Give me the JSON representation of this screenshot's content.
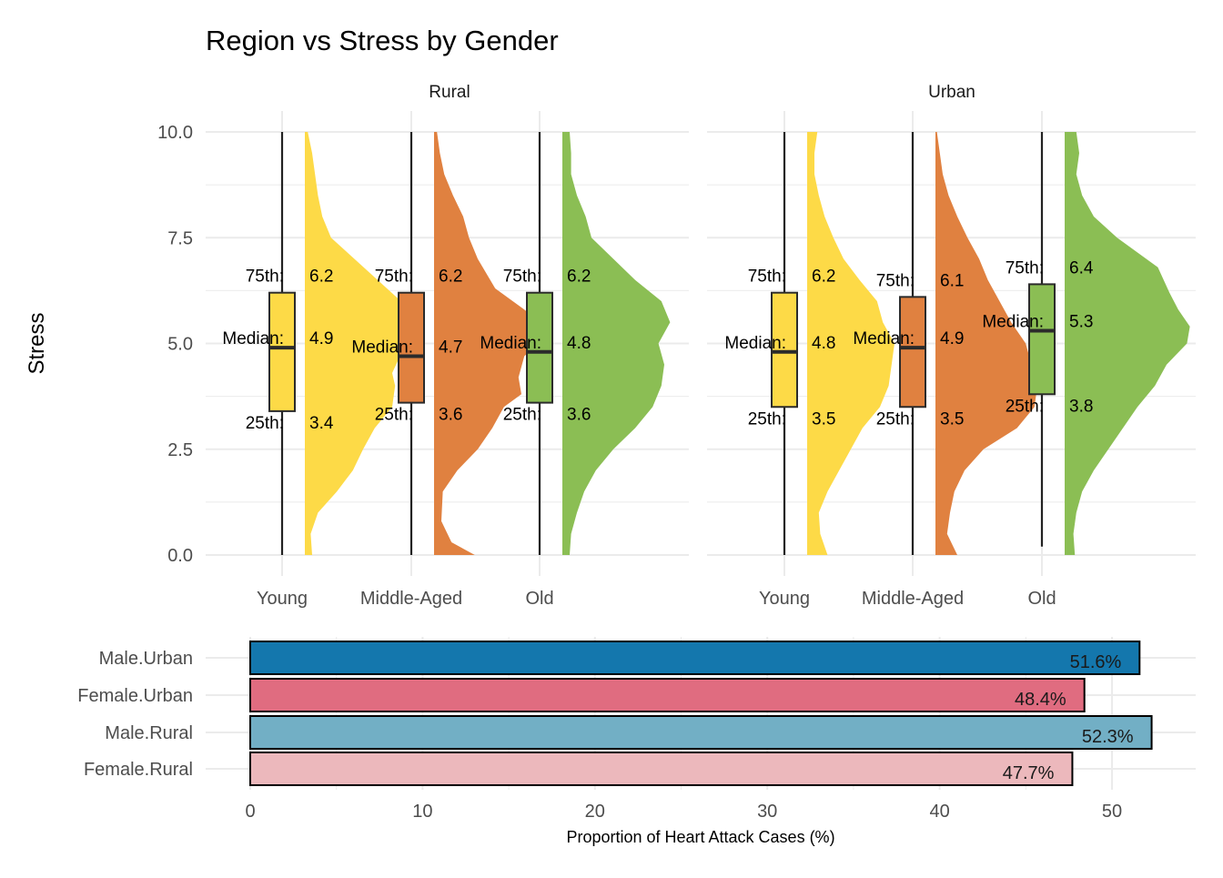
{
  "chart_data": [
    {
      "type": "boxplot-violin",
      "title": "Region vs Stress by Gender",
      "ylabel": "Stress",
      "xlabel": "",
      "ylim": [
        0,
        10
      ],
      "y_ticks": [
        "0.0",
        "2.5",
        "5.0",
        "7.5",
        "10.0"
      ],
      "categories": [
        "Young",
        "Middle-Aged",
        "Old"
      ],
      "colors": {
        "Young": "#FDDA47",
        "Middle-Aged": "#E08140",
        "Old": "#8BBE54"
      },
      "annotation_labels": {
        "q3": "75th:",
        "median": "Median:",
        "q1": "25th:"
      },
      "grid": true,
      "facets": [
        {
          "name": "Rural",
          "groups": [
            {
              "category": "Young",
              "min": 0,
              "q1": 3.4,
              "median": 4.9,
              "q3": 6.2,
              "max": 10,
              "q1_text": "3.4",
              "median_text": "4.9",
              "q3_text": "6.2",
              "density": [
                [
                  0,
                  0.05
                ],
                [
                  0.5,
                  0.04
                ],
                [
                  1,
                  0.09
                ],
                [
                  1.5,
                  0.22
                ],
                [
                  2,
                  0.33
                ],
                [
                  2.5,
                  0.4
                ],
                [
                  3,
                  0.48
                ],
                [
                  3.5,
                  0.6
                ],
                [
                  4,
                  0.62
                ],
                [
                  4.3,
                  0.6
                ],
                [
                  4.6,
                  0.64
                ],
                [
                  5,
                  0.72
                ],
                [
                  5.5,
                  0.72
                ],
                [
                  6,
                  0.66
                ],
                [
                  6.5,
                  0.5
                ],
                [
                  7,
                  0.34
                ],
                [
                  7.5,
                  0.18
                ],
                [
                  8,
                  0.12
                ],
                [
                  8.5,
                  0.09
                ],
                [
                  9,
                  0.07
                ],
                [
                  9.5,
                  0.05
                ],
                [
                  10,
                  0.02
                ]
              ]
            },
            {
              "category": "Middle-Aged",
              "min": 0,
              "q1": 3.6,
              "median": 4.7,
              "q3": 6.2,
              "max": 10,
              "q1_text": "3.6",
              "median_text": "4.7",
              "q3_text": "6.2",
              "density": [
                [
                  0,
                  0.28
                ],
                [
                  0.3,
                  0.12
                ],
                [
                  0.8,
                  0.05
                ],
                [
                  1.5,
                  0.06
                ],
                [
                  2,
                  0.16
                ],
                [
                  2.5,
                  0.3
                ],
                [
                  3,
                  0.4
                ],
                [
                  3.5,
                  0.48
                ],
                [
                  3.8,
                  0.6
                ],
                [
                  4.2,
                  0.58
                ],
                [
                  4.7,
                  0.62
                ],
                [
                  5.3,
                  0.8
                ],
                [
                  5.8,
                  0.62
                ],
                [
                  6.3,
                  0.42
                ],
                [
                  7,
                  0.3
                ],
                [
                  7.5,
                  0.24
                ],
                [
                  8,
                  0.2
                ],
                [
                  8.5,
                  0.13
                ],
                [
                  9,
                  0.07
                ],
                [
                  9.5,
                  0.04
                ],
                [
                  10,
                  0.02
                ]
              ]
            },
            {
              "category": "Old",
              "min": 0,
              "q1": 3.6,
              "median": 4.8,
              "q3": 6.2,
              "max": 10,
              "q1_text": "3.6",
              "median_text": "4.8",
              "q3_text": "6.2",
              "density": [
                [
                  0,
                  0.05
                ],
                [
                  0.5,
                  0.06
                ],
                [
                  1,
                  0.1
                ],
                [
                  1.5,
                  0.15
                ],
                [
                  2,
                  0.23
                ],
                [
                  2.5,
                  0.35
                ],
                [
                  3,
                  0.5
                ],
                [
                  3.5,
                  0.62
                ],
                [
                  4,
                  0.68
                ],
                [
                  4.5,
                  0.7
                ],
                [
                  5,
                  0.66
                ],
                [
                  5.5,
                  0.74
                ],
                [
                  6,
                  0.68
                ],
                [
                  6.5,
                  0.5
                ],
                [
                  7,
                  0.35
                ],
                [
                  7.5,
                  0.2
                ],
                [
                  8,
                  0.16
                ],
                [
                  8.5,
                  0.1
                ],
                [
                  9,
                  0.06
                ],
                [
                  9.5,
                  0.06
                ],
                [
                  10,
                  0.05
                ]
              ]
            }
          ]
        },
        {
          "name": "Urban",
          "groups": [
            {
              "category": "Young",
              "min": 0,
              "q1": 3.5,
              "median": 4.8,
              "q3": 6.2,
              "max": 10,
              "q1_text": "3.5",
              "median_text": "4.8",
              "q3_text": "6.2",
              "density": [
                [
                  0,
                  0.14
                ],
                [
                  0.5,
                  0.09
                ],
                [
                  1,
                  0.08
                ],
                [
                  1.5,
                  0.14
                ],
                [
                  2,
                  0.22
                ],
                [
                  2.5,
                  0.3
                ],
                [
                  3,
                  0.38
                ],
                [
                  3.5,
                  0.5
                ],
                [
                  4,
                  0.56
                ],
                [
                  4.5,
                  0.58
                ],
                [
                  5,
                  0.6
                ],
                [
                  5.5,
                  0.52
                ],
                [
                  6,
                  0.48
                ],
                [
                  6.5,
                  0.36
                ],
                [
                  7,
                  0.25
                ],
                [
                  7.5,
                  0.18
                ],
                [
                  8,
                  0.12
                ],
                [
                  8.5,
                  0.08
                ],
                [
                  9,
                  0.05
                ],
                [
                  9.5,
                  0.05
                ],
                [
                  10,
                  0.07
                ]
              ]
            },
            {
              "category": "Middle-Aged",
              "min": 0,
              "q1": 3.5,
              "median": 4.9,
              "q3": 6.1,
              "max": 10,
              "q1_text": "3.5",
              "median_text": "4.9",
              "q3_text": "6.1",
              "density": [
                [
                  0,
                  0.15
                ],
                [
                  0.5,
                  0.08
                ],
                [
                  1,
                  0.1
                ],
                [
                  1.5,
                  0.13
                ],
                [
                  2,
                  0.2
                ],
                [
                  2.5,
                  0.33
                ],
                [
                  3,
                  0.56
                ],
                [
                  3.5,
                  0.68
                ],
                [
                  4,
                  0.7
                ],
                [
                  4.5,
                  0.66
                ],
                [
                  5,
                  0.62
                ],
                [
                  5.5,
                  0.52
                ],
                [
                  6,
                  0.44
                ],
                [
                  6.5,
                  0.36
                ],
                [
                  7,
                  0.3
                ],
                [
                  7.5,
                  0.22
                ],
                [
                  8,
                  0.15
                ],
                [
                  8.5,
                  0.09
                ],
                [
                  9,
                  0.05
                ],
                [
                  9.5,
                  0.03
                ],
                [
                  10,
                  0.01
                ]
              ]
            },
            {
              "category": "Old",
              "min": 0.2,
              "q1": 3.8,
              "median": 5.3,
              "q3": 6.4,
              "max": 10,
              "q1_text": "3.8",
              "median_text": "5.3",
              "q3_text": "6.4",
              "density": [
                [
                  0,
                  0.07
                ],
                [
                  0.5,
                  0.06
                ],
                [
                  1,
                  0.08
                ],
                [
                  1.5,
                  0.12
                ],
                [
                  2,
                  0.2
                ],
                [
                  2.5,
                  0.3
                ],
                [
                  3,
                  0.4
                ],
                [
                  3.5,
                  0.5
                ],
                [
                  4,
                  0.62
                ],
                [
                  4.5,
                  0.7
                ],
                [
                  5,
                  0.84
                ],
                [
                  5.4,
                  0.86
                ],
                [
                  5.8,
                  0.78
                ],
                [
                  6.2,
                  0.72
                ],
                [
                  6.8,
                  0.64
                ],
                [
                  7.5,
                  0.36
                ],
                [
                  8,
                  0.2
                ],
                [
                  8.5,
                  0.12
                ],
                [
                  9,
                  0.08
                ],
                [
                  9.5,
                  0.1
                ],
                [
                  10,
                  0.08
                ]
              ]
            }
          ]
        }
      ]
    },
    {
      "type": "bar",
      "orientation": "horizontal",
      "categories": [
        "Male.Urban",
        "Female.Urban",
        "Male.Rural",
        "Female.Rural"
      ],
      "values": [
        51.6,
        48.4,
        52.3,
        47.7
      ],
      "value_labels": [
        "51.6%",
        "48.4%",
        "52.3%",
        "47.7%"
      ],
      "colors": [
        "#1477AD",
        "#E06C80",
        "#72AFC5",
        "#ECB8BC"
      ],
      "xlabel": "Proportion of Heart Attack Cases (%)",
      "xlim": [
        0,
        55
      ],
      "x_ticks": [
        "0",
        "10",
        "20",
        "30",
        "40",
        "50"
      ],
      "grid": true
    }
  ]
}
